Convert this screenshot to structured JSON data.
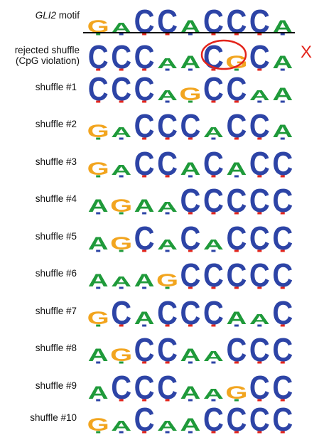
{
  "colors": {
    "A": "#1f9a3a",
    "C": "#2d44a6",
    "G": "#f2a51f",
    "T": "#e3241b",
    "reject": "#e3241b",
    "circle": "#e3241b"
  },
  "header": {
    "motif_name": "GLI2",
    "motif_suffix": " motif",
    "motif_sequence": "GACCACCCA"
  },
  "rejected": {
    "label_line1": "rejected shuffle",
    "label_line2": "(CpG violation)",
    "sequence": "CCCAACGCA",
    "mark": "X"
  },
  "shuffles": [
    {
      "label": "shuffle #1",
      "sequence": "CCCAGCCAA"
    },
    {
      "label": "shuffle #2",
      "sequence": "GACCCACCA"
    },
    {
      "label": "shuffle #3",
      "sequence": "GACCACACC"
    },
    {
      "label": "shuffle #4",
      "sequence": "AGAACCCCC"
    },
    {
      "label": "shuffle #5",
      "sequence": "AGCACACCC"
    },
    {
      "label": "shuffle #6",
      "sequence": "AAAGCCCCC"
    },
    {
      "label": "shuffle #7",
      "sequence": "GCACCCAAC"
    },
    {
      "label": "shuffle #8",
      "sequence": "AGCCAACCC"
    },
    {
      "label": "shuffle #9",
      "sequence": "ACCCAAGCC"
    },
    {
      "label": "shuffle #10",
      "sequence": "GACAACCCC"
    }
  ]
}
